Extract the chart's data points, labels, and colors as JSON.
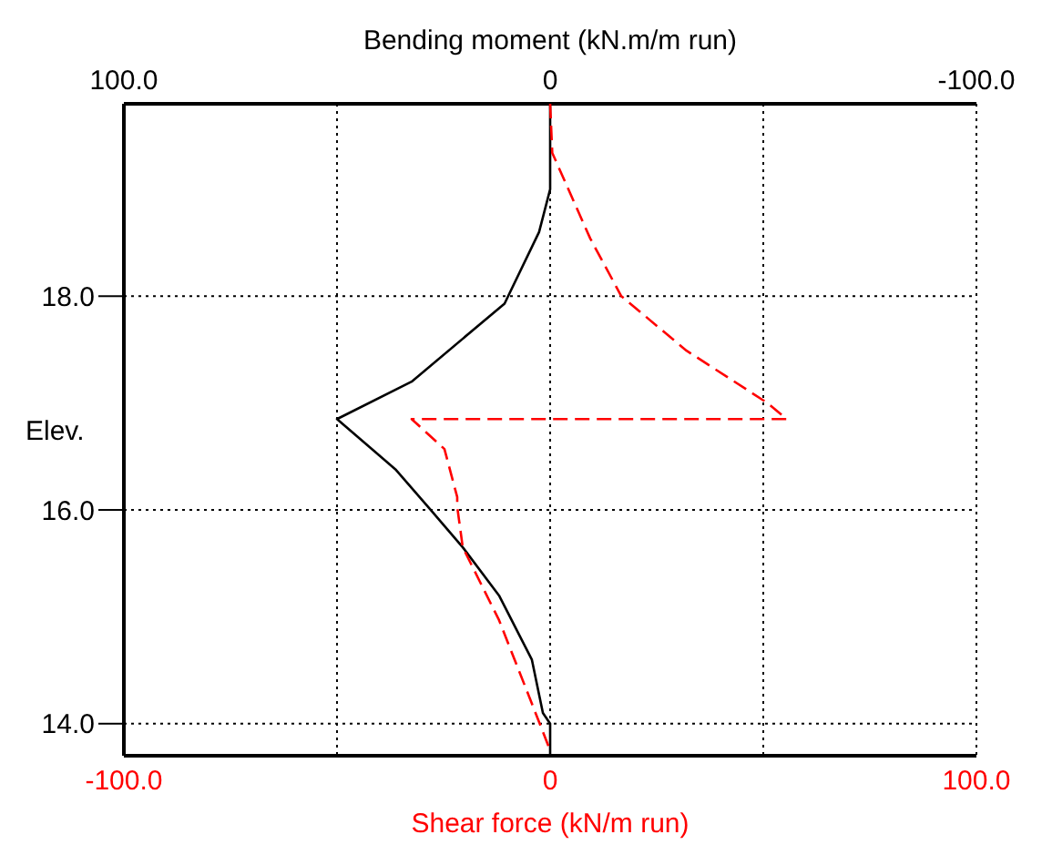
{
  "chart_data": {
    "type": "line",
    "xlabel": "Shear force (kN/m run)",
    "x2label": "Bending moment (kN.m/m run)",
    "ylabel": "Elev.",
    "xlim": [
      -100,
      100
    ],
    "xticks": [
      {
        "value": -100,
        "label": "-100.0"
      },
      {
        "value": -50,
        "label": null
      },
      0,
      {
        "value": 50,
        "label": null
      },
      {
        "value": 100,
        "label": "100.0"
      }
    ],
    "x2lim": [
      100,
      -100
    ],
    "x2ticks": [
      {
        "value": 100,
        "label": "100.0"
      },
      0,
      {
        "value": -100,
        "label": "-100.0"
      }
    ],
    "ylim": [
      13.7,
      19.8
    ],
    "yticks": [
      {
        "value": 14,
        "label": "14.0"
      },
      {
        "value": 16,
        "label": "16.0"
      },
      {
        "value": 18,
        "label": "18.0"
      }
    ],
    "grid": true,
    "marker": "none",
    "series": [
      {
        "axis": "x2",
        "color": "#000000",
        "line_style": "solid",
        "x": [
          0,
          0,
          2.6,
          10.7,
          32.5,
          50,
          36.3,
          28,
          20.5,
          12,
          4.3,
          1.7,
          0,
          0
        ],
        "values": [
          19.8,
          19.0,
          18.6,
          17.93,
          17.2,
          16.85,
          16.38,
          16.0,
          15.65,
          15.2,
          14.6,
          14.1,
          14.0,
          13.7
        ]
      },
      {
        "color": "#ff0000",
        "line_style": "dashed",
        "x": [
          0,
          0.5,
          9.4,
          16.7,
          32,
          51,
          55.5,
          -32.5,
          -24.8,
          -21.8,
          -21.8,
          -20.5,
          -12,
          -4.7,
          0
        ],
        "values": [
          19.8,
          19.34,
          18.54,
          18.0,
          17.49,
          17.0,
          16.85,
          16.85,
          16.57,
          16.12,
          16.03,
          15.65,
          14.97,
          14.23,
          13.75
        ]
      }
    ]
  }
}
